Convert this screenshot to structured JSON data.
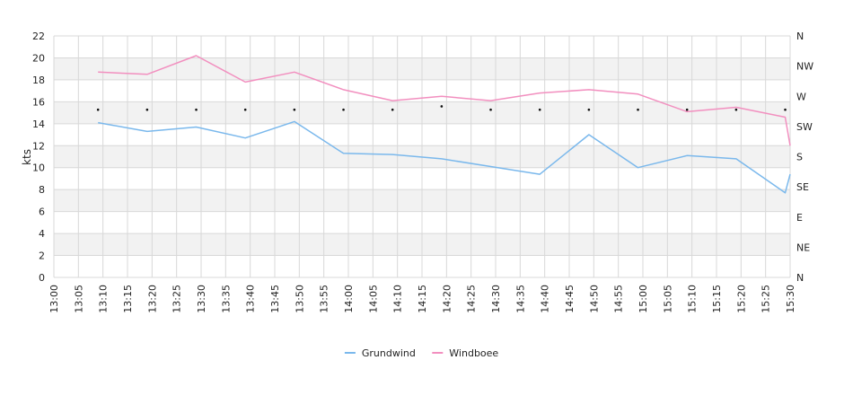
{
  "chart_data": {
    "type": "line",
    "ylabel": "kts",
    "ylim": [
      0,
      22
    ],
    "yticks": [
      0,
      2,
      4,
      6,
      8,
      10,
      12,
      14,
      16,
      18,
      20,
      22
    ],
    "xticks": [
      "13:00",
      "13:05",
      "13:10",
      "13:15",
      "13:20",
      "13:25",
      "13:30",
      "13:35",
      "13:40",
      "13:45",
      "13:50",
      "13:55",
      "14:00",
      "14:05",
      "14:10",
      "14:15",
      "14:20",
      "14:25",
      "14:30",
      "14:35",
      "14:40",
      "14:45",
      "14:50",
      "14:55",
      "15:00",
      "15:05",
      "15:10",
      "15:15",
      "15:20",
      "15:25",
      "15:30"
    ],
    "direction_axis": {
      "labels": [
        "N",
        "NE",
        "E",
        "SE",
        "S",
        "SW",
        "W",
        "NW",
        "N"
      ],
      "range_degrees": [
        0,
        360
      ]
    },
    "grid": true,
    "legend_position": "bottom-center",
    "series": [
      {
        "name": "Grundwind",
        "color": "#7ab8ec",
        "x": [
          "13:09",
          "13:19",
          "13:29",
          "13:39",
          "13:49",
          "13:59",
          "14:09",
          "14:19",
          "14:29",
          "14:39",
          "14:49",
          "14:59",
          "15:09",
          "15:19",
          "15:29",
          "15:30"
        ],
        "values": [
          14.1,
          13.3,
          13.7,
          12.7,
          14.2,
          11.3,
          11.2,
          10.8,
          10.1,
          9.4,
          13.0,
          10.0,
          11.1,
          10.8,
          7.7,
          9.4
        ]
      },
      {
        "name": "Windboee",
        "color": "#f28fbf",
        "x": [
          "13:09",
          "13:19",
          "13:29",
          "13:39",
          "13:49",
          "13:59",
          "14:09",
          "14:19",
          "14:29",
          "14:39",
          "14:49",
          "14:59",
          "15:09",
          "15:19",
          "15:29",
          "15:30"
        ],
        "values": [
          18.7,
          18.5,
          20.2,
          17.8,
          18.7,
          17.1,
          16.1,
          16.5,
          16.1,
          16.8,
          17.1,
          16.7,
          15.1,
          15.5,
          14.6,
          12.0
        ]
      }
    ],
    "direction_points": {
      "x": [
        "13:09",
        "13:19",
        "13:29",
        "13:39",
        "13:49",
        "13:59",
        "14:09",
        "14:19",
        "14:29",
        "14:39",
        "14:49",
        "14:59",
        "15:09",
        "15:19",
        "15:29"
      ],
      "degrees": [
        250,
        250,
        250,
        250,
        250,
        250,
        250,
        255,
        250,
        250,
        250,
        250,
        250,
        250,
        250
      ]
    }
  }
}
